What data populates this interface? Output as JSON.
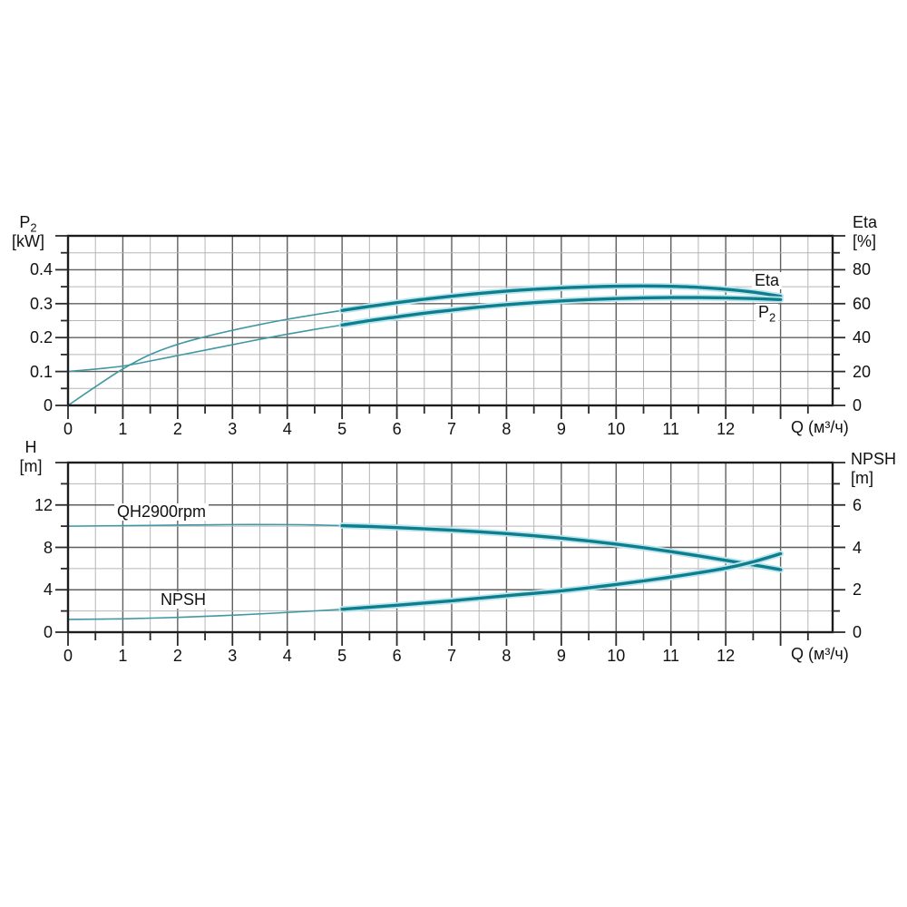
{
  "page": {
    "background": "#ffffff"
  },
  "colors": {
    "curve": "#0d7e8e",
    "curve_thin": "#3f98a3",
    "curve_halo": "#bfe6ec",
    "grid_minor": "#b6b6b6",
    "grid_major": "#5f5f5f",
    "frame": "#1c1c1c",
    "tick": "#2a2a2a",
    "text": "#111111"
  },
  "axes_labels": {
    "q": "Q (м³/ч)",
    "p2_symbol": "P",
    "p2_sub": "2",
    "p2_unit": "[kW]",
    "eta_symbol": "Eta",
    "eta_unit": "[%]",
    "h_symbol": "H",
    "h_unit": "[m]",
    "npsh_symbol": "NPSH",
    "npsh_unit": "[m]"
  },
  "curve_labels": {
    "eta": "Eta",
    "p2_main": "P",
    "p2_sub": "2",
    "qh": "QH2900rpm",
    "npsh": "NPSH"
  },
  "chart_data": [
    {
      "type": "line",
      "id": "power-efficiency-curve",
      "xlabel": "Q (м³/ч)",
      "x_axis": {
        "min": 0,
        "max": 13.95,
        "major_step": 1,
        "minor_step": 0.5,
        "ticks": [
          {
            "t": "0",
            "v": 0
          },
          {
            "t": "1",
            "v": 1
          },
          {
            "t": "2",
            "v": 2
          },
          {
            "t": "3",
            "v": 3
          },
          {
            "t": "4",
            "v": 4
          },
          {
            "t": "5",
            "v": 5
          },
          {
            "t": "6",
            "v": 6
          },
          {
            "t": "7",
            "v": 7
          },
          {
            "t": "8",
            "v": 8
          },
          {
            "t": "9",
            "v": 9
          },
          {
            "t": "10",
            "v": 10
          },
          {
            "t": "11",
            "v": 11
          },
          {
            "t": "12",
            "v": 12
          }
        ]
      },
      "y_left": {
        "name": "P2",
        "unit": "[kW]",
        "min": 0,
        "max": 0.5,
        "major_step": 0.1,
        "minor_step": 0.05,
        "ticks": [
          {
            "t": "0",
            "v": 0
          },
          {
            "t": "0.1",
            "v": 0.1
          },
          {
            "t": "0.2",
            "v": 0.2
          },
          {
            "t": "0.3",
            "v": 0.3
          },
          {
            "t": "0.4",
            "v": 0.4
          }
        ]
      },
      "y_right": {
        "name": "Eta",
        "unit": "[%]",
        "min": 0,
        "max": 100,
        "major_step": 20,
        "minor_step": 10,
        "ticks": [
          {
            "t": "0",
            "v": 0
          },
          {
            "t": "20",
            "v": 20
          },
          {
            "t": "40",
            "v": 40
          },
          {
            "t": "60",
            "v": 60
          },
          {
            "t": "80",
            "v": 80
          }
        ]
      },
      "series": [
        {
          "name": "Eta",
          "axis": "right",
          "thick_from": 5,
          "points": [
            [
              0,
              0
            ],
            [
              0.5,
              11
            ],
            [
              1,
              21.5
            ],
            [
              1.5,
              30
            ],
            [
              2,
              36
            ],
            [
              2.5,
              40.5
            ],
            [
              3,
              44.3
            ],
            [
              3.5,
              47.7
            ],
            [
              4,
              50.8
            ],
            [
              4.5,
              53.5
            ],
            [
              5,
              56
            ],
            [
              5.5,
              58.4
            ],
            [
              6,
              60.6
            ],
            [
              6.5,
              62.6
            ],
            [
              7,
              64.4
            ],
            [
              7.5,
              66
            ],
            [
              8,
              67.4
            ],
            [
              8.5,
              68.5
            ],
            [
              9,
              69.3
            ],
            [
              9.5,
              69.9
            ],
            [
              10,
              70.3
            ],
            [
              10.5,
              70.4
            ],
            [
              11,
              70.2
            ],
            [
              11.5,
              69.6
            ],
            [
              12,
              68.5
            ],
            [
              12.5,
              66.8
            ],
            [
              13,
              64.3
            ]
          ]
        },
        {
          "name": "P2",
          "axis": "left",
          "thick_from": 5,
          "points": [
            [
              0,
              0.1
            ],
            [
              0.5,
              0.107
            ],
            [
              1,
              0.116
            ],
            [
              1.5,
              0.131
            ],
            [
              2,
              0.147
            ],
            [
              2.5,
              0.163
            ],
            [
              3,
              0.179
            ],
            [
              3.5,
              0.195
            ],
            [
              4,
              0.21
            ],
            [
              4.5,
              0.224
            ],
            [
              5,
              0.237
            ],
            [
              5.5,
              0.25
            ],
            [
              6,
              0.261
            ],
            [
              6.5,
              0.272
            ],
            [
              7,
              0.281
            ],
            [
              7.5,
              0.29
            ],
            [
              8,
              0.297
            ],
            [
              8.5,
              0.303
            ],
            [
              9,
              0.308
            ],
            [
              9.5,
              0.312
            ],
            [
              10,
              0.315
            ],
            [
              10.5,
              0.317
            ],
            [
              11,
              0.318
            ],
            [
              11.5,
              0.318
            ],
            [
              12,
              0.317
            ],
            [
              12.5,
              0.315
            ],
            [
              13,
              0.312
            ]
          ]
        }
      ]
    },
    {
      "type": "line",
      "id": "head-npsh-curve",
      "xlabel": "Q (м³/ч)",
      "x_axis": {
        "min": 0,
        "max": 13.95,
        "major_step": 1,
        "minor_step": 0.5,
        "ticks": [
          {
            "t": "0",
            "v": 0
          },
          {
            "t": "1",
            "v": 1
          },
          {
            "t": "2",
            "v": 2
          },
          {
            "t": "3",
            "v": 3
          },
          {
            "t": "4",
            "v": 4
          },
          {
            "t": "5",
            "v": 5
          },
          {
            "t": "6",
            "v": 6
          },
          {
            "t": "7",
            "v": 7
          },
          {
            "t": "8",
            "v": 8
          },
          {
            "t": "9",
            "v": 9
          },
          {
            "t": "10",
            "v": 10
          },
          {
            "t": "11",
            "v": 11
          },
          {
            "t": "12",
            "v": 12
          }
        ]
      },
      "y_left": {
        "name": "H",
        "unit": "[m]",
        "min": 0,
        "max": 16,
        "major_step": 4,
        "minor_step": 2,
        "ticks": [
          {
            "t": "0",
            "v": 0
          },
          {
            "t": "4",
            "v": 4
          },
          {
            "t": "8",
            "v": 8
          },
          {
            "t": "12",
            "v": 12
          }
        ]
      },
      "y_right": {
        "name": "NPSH",
        "unit": "[m]",
        "min": 0,
        "max": 8,
        "major_step": 2,
        "minor_step": 1,
        "ticks": [
          {
            "t": "0",
            "v": 0
          },
          {
            "t": "2",
            "v": 2
          },
          {
            "t": "4",
            "v": 4
          },
          {
            "t": "6",
            "v": 6
          }
        ]
      },
      "series": [
        {
          "name": "QH2900rpm",
          "axis": "left",
          "thick_from": 5,
          "points": [
            [
              0,
              10.0
            ],
            [
              1,
              10.05
            ],
            [
              2,
              10.1
            ],
            [
              3,
              10.15
            ],
            [
              4,
              10.15
            ],
            [
              4.5,
              10.12
            ],
            [
              5,
              10.05
            ],
            [
              5.5,
              9.97
            ],
            [
              6,
              9.87
            ],
            [
              6.5,
              9.75
            ],
            [
              7,
              9.62
            ],
            [
              7.5,
              9.47
            ],
            [
              8,
              9.3
            ],
            [
              8.5,
              9.1
            ],
            [
              9,
              8.87
            ],
            [
              9.5,
              8.6
            ],
            [
              10,
              8.3
            ],
            [
              10.5,
              7.97
            ],
            [
              11,
              7.6
            ],
            [
              11.5,
              7.2
            ],
            [
              12,
              6.78
            ],
            [
              12.5,
              6.35
            ],
            [
              13,
              5.9
            ]
          ]
        },
        {
          "name": "NPSH",
          "axis": "right",
          "thick_from": 5,
          "points": [
            [
              0,
              0.6
            ],
            [
              1,
              0.63
            ],
            [
              2,
              0.7
            ],
            [
              3,
              0.8
            ],
            [
              4,
              0.93
            ],
            [
              5,
              1.08
            ],
            [
              6,
              1.27
            ],
            [
              7,
              1.48
            ],
            [
              8,
              1.72
            ],
            [
              9,
              1.95
            ],
            [
              10,
              2.25
            ],
            [
              11,
              2.6
            ],
            [
              12,
              3.02
            ],
            [
              12.5,
              3.32
            ],
            [
              13,
              3.7
            ]
          ]
        }
      ]
    }
  ]
}
